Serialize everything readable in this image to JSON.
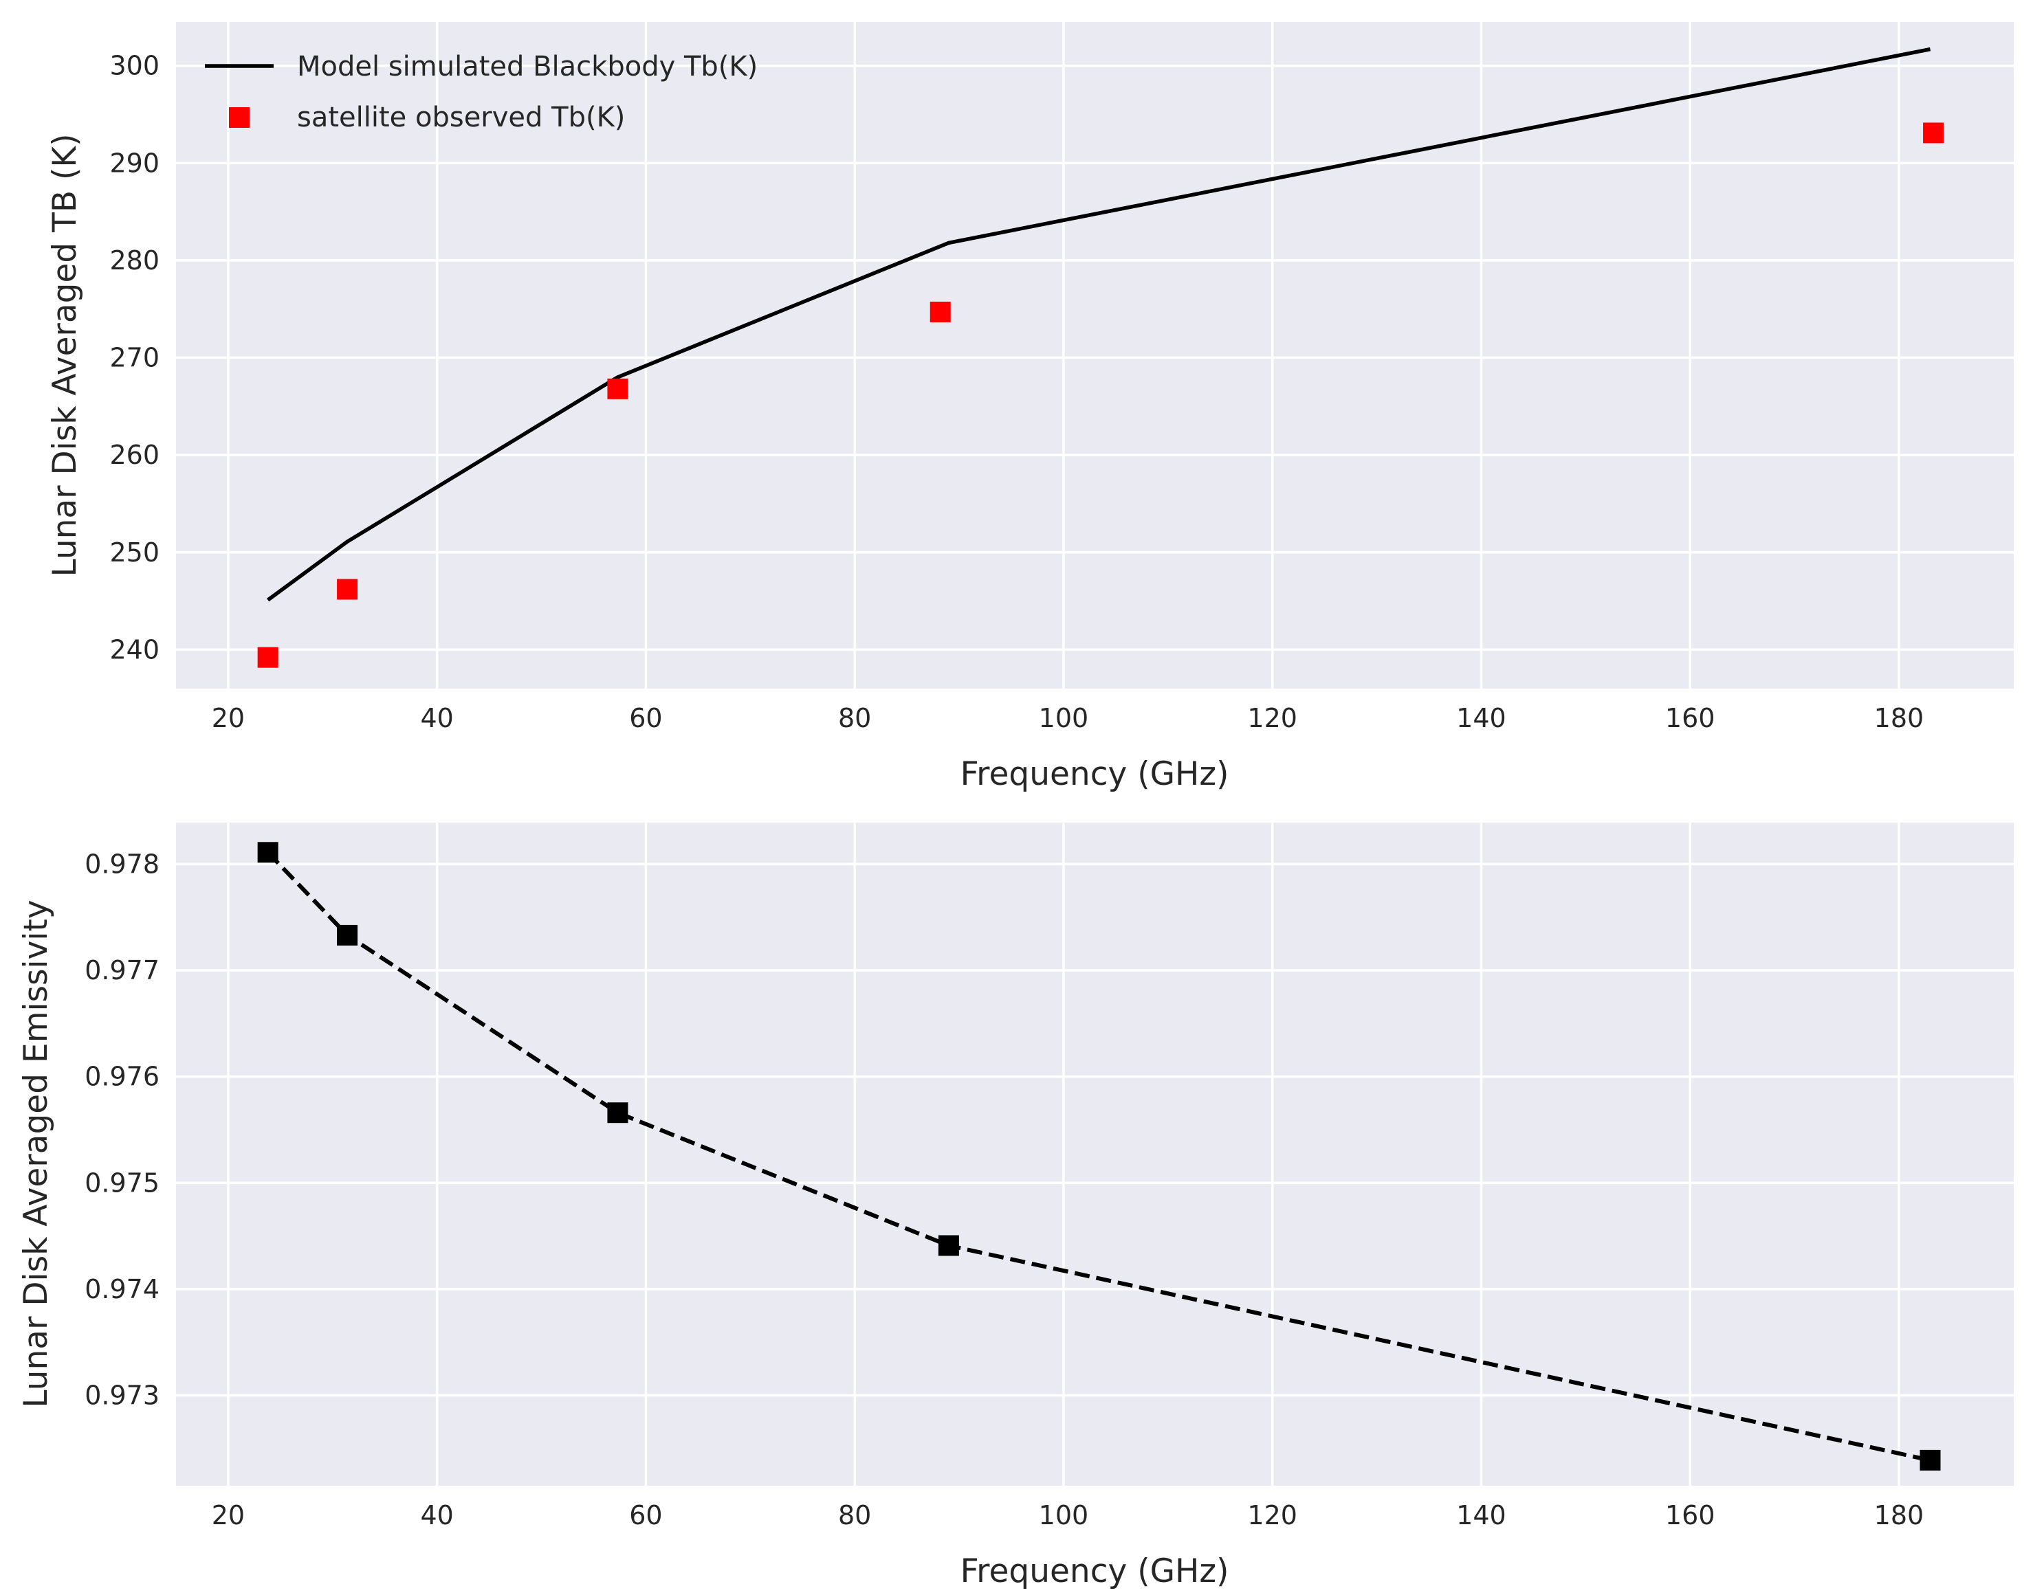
{
  "chart_data": [
    {
      "type": "line",
      "xlabel": "Frequency (GHz)",
      "ylabel": "Lunar Disk Averaged TB (K)",
      "xlim": [
        15,
        191
      ],
      "ylim": [
        236,
        304.5
      ],
      "xticks": [
        20,
        40,
        60,
        80,
        100,
        120,
        140,
        160,
        180
      ],
      "yticks": [
        240,
        250,
        260,
        270,
        280,
        290,
        300
      ],
      "legend_position": "top-left",
      "series": [
        {
          "name": "Model simulated Blackbody Tb(K)",
          "style": "solid-line",
          "color": "#000000",
          "x": [
            23.8,
            31.4,
            57.3,
            89.0,
            183.0
          ],
          "y": [
            245.1,
            251.1,
            268.0,
            281.8,
            301.7
          ]
        },
        {
          "name": "satellite observed Tb(K)",
          "style": "square-markers",
          "color": "#ff0000",
          "x": [
            23.8,
            31.4,
            57.3,
            88.2,
            183.3
          ],
          "y": [
            239.2,
            246.2,
            266.8,
            274.7,
            293.1
          ]
        }
      ]
    },
    {
      "type": "line",
      "xlabel": "Frequency (GHz)",
      "ylabel": "Lunar Disk Averaged Emissivity",
      "xlim": [
        15,
        191
      ],
      "ylim": [
        0.97215,
        0.97839
      ],
      "xticks": [
        20,
        40,
        60,
        80,
        100,
        120,
        140,
        160,
        180
      ],
      "yticks": [
        0.973,
        0.974,
        0.975,
        0.976,
        0.977,
        0.978
      ],
      "series": [
        {
          "name": "emissivity",
          "style": "dashed-line-square-markers",
          "color": "#000000",
          "x": [
            23.8,
            31.4,
            57.3,
            89.0,
            183.0
          ],
          "y": [
            0.97811,
            0.97733,
            0.97566,
            0.97441,
            0.97239
          ]
        }
      ]
    }
  ]
}
